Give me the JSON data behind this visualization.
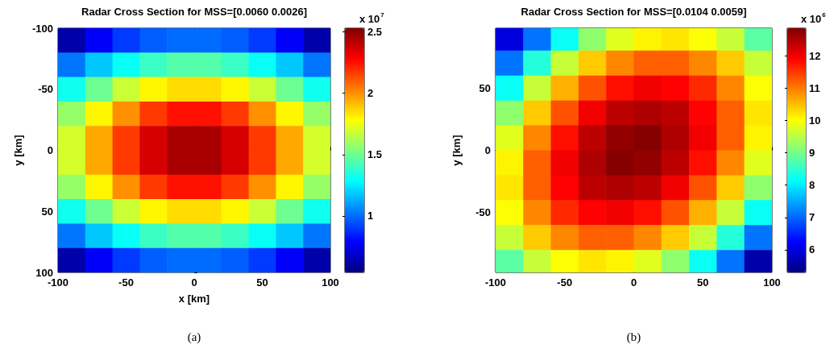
{
  "chart_data": [
    {
      "type": "heatmap",
      "title": "Radar Cross Section for MSS=[0.0060 0.0026]",
      "xlabel": "x [km]",
      "ylabel": "y [km]",
      "clabel": "x 10$^{7}$",
      "x": [
        -90,
        -70,
        -50,
        -30,
        -10,
        10,
        30,
        50,
        70,
        90
      ],
      "y": [
        -90,
        -70,
        -50,
        -30,
        -10,
        10,
        30,
        50,
        70,
        90
      ],
      "xlim": [
        -100,
        100
      ],
      "xticks": [
        -100,
        -50,
        0,
        50,
        100
      ],
      "ylim": [
        100,
        -100
      ],
      "yticks": [
        -100,
        -50,
        0,
        50,
        100
      ],
      "clim": [
        0.54,
        2.53
      ],
      "cticks": [
        1,
        1.5,
        2,
        2.5
      ],
      "cells": [
        [
          0.62,
          0.78,
          0.9,
          0.97,
          1.0,
          1.0,
          0.97,
          0.9,
          0.78,
          0.62
        ],
        [
          1.02,
          1.18,
          1.3,
          1.4,
          1.45,
          1.45,
          1.4,
          1.3,
          1.18,
          1.02
        ],
        [
          1.32,
          1.5,
          1.68,
          1.8,
          1.85,
          1.85,
          1.8,
          1.68,
          1.5,
          1.32
        ],
        [
          1.58,
          1.8,
          2.0,
          2.17,
          2.25,
          2.25,
          2.17,
          2.0,
          1.8,
          1.58
        ],
        [
          1.7,
          1.95,
          2.17,
          2.36,
          2.45,
          2.45,
          2.36,
          2.17,
          1.95,
          1.7
        ],
        [
          1.7,
          1.95,
          2.17,
          2.36,
          2.45,
          2.45,
          2.36,
          2.17,
          1.95,
          1.7
        ],
        [
          1.58,
          1.8,
          2.0,
          2.17,
          2.25,
          2.25,
          2.17,
          2.0,
          1.8,
          1.58
        ],
        [
          1.32,
          1.5,
          1.68,
          1.8,
          1.85,
          1.85,
          1.8,
          1.68,
          1.5,
          1.32
        ],
        [
          1.02,
          1.18,
          1.3,
          1.4,
          1.45,
          1.45,
          1.4,
          1.3,
          1.18,
          1.02
        ],
        [
          0.62,
          0.78,
          0.9,
          0.97,
          1.0,
          1.0,
          0.97,
          0.9,
          0.78,
          0.62
        ]
      ],
      "annotations": [
        "(a)"
      ]
    },
    {
      "type": "heatmap",
      "title": "Radar Cross Section for MSS=[0.0104 0.0059]",
      "ylabel": "y [km]",
      "clabel": "x 10$^{6}$",
      "x": [
        -90,
        -70,
        -50,
        -30,
        -10,
        10,
        30,
        50,
        70,
        90
      ],
      "y": [
        90,
        70,
        50,
        30,
        10,
        -10,
        -30,
        -50,
        -70,
        -90
      ],
      "xlim": [
        -100,
        100
      ],
      "xticks": [
        -100,
        -50,
        0,
        50,
        100
      ],
      "ylim": [
        -98,
        98
      ],
      "yticks": [
        -50,
        0,
        50
      ],
      "clim": [
        5.3,
        12.85
      ],
      "cticks": [
        6,
        7,
        8,
        9,
        10,
        11,
        12
      ],
      "cells": [
        [
          6.0,
          7.1,
          8.2,
          9.2,
          9.8,
          10.1,
          10.2,
          10.0,
          9.6,
          8.8
        ],
        [
          7.1,
          8.4,
          9.6,
          10.4,
          10.9,
          11.2,
          11.2,
          10.9,
          10.4,
          9.6
        ],
        [
          8.2,
          9.6,
          10.6,
          11.3,
          11.8,
          12.0,
          11.9,
          11.6,
          10.9,
          10.0
        ],
        [
          9.2,
          10.4,
          11.3,
          12.0,
          12.4,
          12.5,
          12.4,
          11.9,
          11.2,
          10.2
        ],
        [
          9.8,
          10.9,
          11.8,
          12.4,
          12.7,
          12.8,
          12.5,
          12.0,
          11.2,
          10.1
        ],
        [
          10.1,
          11.2,
          12.0,
          12.5,
          12.8,
          12.7,
          12.4,
          11.8,
          10.9,
          9.8
        ],
        [
          10.2,
          11.2,
          11.9,
          12.4,
          12.5,
          12.4,
          12.0,
          11.3,
          10.4,
          9.2
        ],
        [
          10.0,
          10.9,
          11.6,
          11.9,
          12.0,
          11.8,
          11.3,
          10.6,
          9.6,
          8.2
        ],
        [
          9.6,
          10.4,
          10.9,
          11.2,
          11.2,
          10.9,
          10.4,
          9.6,
          8.4,
          7.1
        ],
        [
          8.8,
          9.6,
          10.0,
          10.2,
          10.1,
          9.8,
          9.2,
          8.2,
          7.1,
          5.6
        ]
      ],
      "annotations": [
        "(b)"
      ]
    }
  ]
}
